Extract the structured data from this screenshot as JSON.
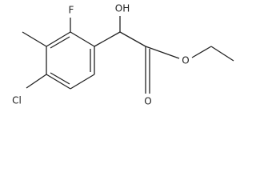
{
  "atoms": [
    {
      "label": "F"
    },
    {
      "label": "OH"
    },
    {
      "label": "O"
    },
    {
      "label": "O"
    },
    {
      "label": "Cl"
    }
  ]
}
